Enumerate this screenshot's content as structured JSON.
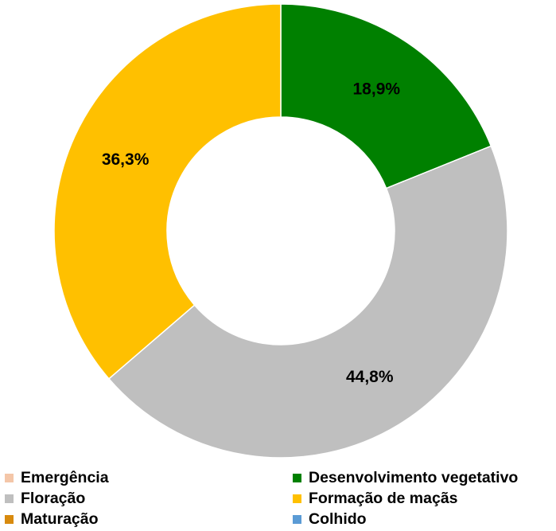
{
  "chart_data": {
    "type": "pie",
    "variant": "donut",
    "slices": [
      {
        "name": "Emergência",
        "value": 0,
        "label": "",
        "color": "#F4C6A8"
      },
      {
        "name": "Desenvolvimento vegetativo",
        "value": 18.9,
        "label": "18,9%",
        "color": "#008000"
      },
      {
        "name": "Floração",
        "value": 44.8,
        "label": "44,8%",
        "color": "#BFBFBF"
      },
      {
        "name": "Formação de maçãs",
        "value": 36.3,
        "label": "36,3%",
        "color": "#FFC000"
      },
      {
        "name": "Maturação",
        "value": 0,
        "label": "",
        "color": "#D88A0E"
      },
      {
        "name": "Colhido",
        "value": 0,
        "label": "",
        "color": "#5B9BD5"
      }
    ],
    "start_angle": "top, clockwise",
    "legend_position": "bottom"
  }
}
